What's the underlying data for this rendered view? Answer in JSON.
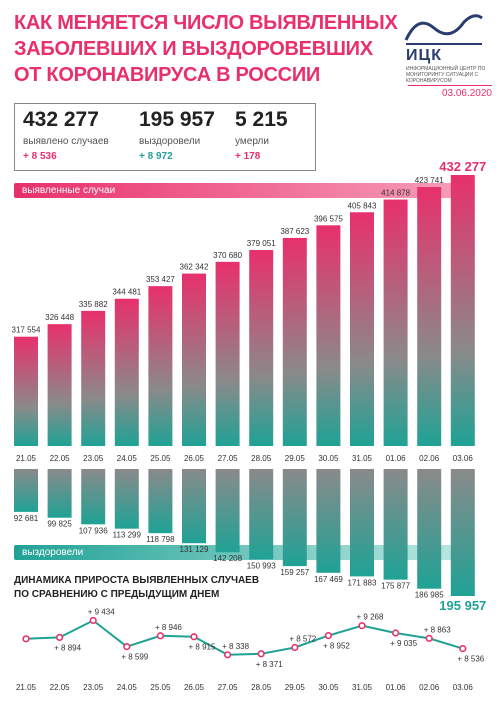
{
  "title_lines": [
    "КАК МЕНЯЕТСЯ ЧИСЛО ВЫЯВЛЕННЫХ",
    "ЗАБОЛЕВШИХ И ВЫЗДОРОВЕВШИХ",
    "ОТ КОРОНАВИРУСА В РОССИИ"
  ],
  "logo": {
    "name": "ИЦК",
    "subtitle": "ИНФОРМАЦИОННЫЙ ЦЕНТР ПО МОНИТОРИНГУ СИТУАЦИИ С КОРОНАВИРУСОМ"
  },
  "date": "03.06.2020",
  "stats": [
    {
      "value": "432 277",
      "label": "выявлено случаев",
      "delta": "+ 8 536",
      "color": "#e8306b"
    },
    {
      "value": "195 957",
      "label": "выздоровели",
      "delta": "+ 8 972",
      "color": "#1fa295"
    },
    {
      "value": "5 215",
      "label": "умерли",
      "delta": "+ 178",
      "color": "#e8306b"
    }
  ],
  "colors": {
    "cases": "#e8306b",
    "cases_dark": "#8a8a8a",
    "recovered": "#1fa295",
    "recovered_dark": "#8a8a8a",
    "line": "#1fa295",
    "marker": "#e8306b"
  },
  "chart_data": [
    {
      "type": "bar",
      "name": "выявленные случаи",
      "categories": [
        "21.05",
        "22.05",
        "23.05",
        "24.05",
        "25.05",
        "26.05",
        "27.05",
        "28.05",
        "29.05",
        "30.05",
        "31.05",
        "01.06",
        "02.06",
        "03.06"
      ],
      "values": [
        317554,
        326448,
        335882,
        344481,
        353427,
        362342,
        370680,
        379051,
        387623,
        396575,
        405843,
        414878,
        423741,
        432277
      ],
      "labels": [
        "317 554",
        "326 448",
        "335 882",
        "344 481",
        "353 427",
        "362 342",
        "370 680",
        "379 051",
        "387 623",
        "396 575",
        "405 843",
        "414 878",
        "423 741",
        "432 277"
      ]
    },
    {
      "type": "bar",
      "name": "выздоровели",
      "categories": [
        "21.05",
        "22.05",
        "23.05",
        "24.05",
        "25.05",
        "26.05",
        "27.05",
        "28.05",
        "29.05",
        "30.05",
        "31.05",
        "01.06",
        "02.06",
        "03.06"
      ],
      "values": [
        92681,
        99825,
        107936,
        113299,
        118798,
        131129,
        142208,
        150993,
        159257,
        167469,
        171883,
        175877,
        186985,
        195957
      ],
      "labels": [
        "92 681",
        "99 825",
        "107 936",
        "113 299",
        "118 798",
        "131 129",
        "142 208",
        "150 993",
        "159 257",
        "167 469",
        "171 883",
        "175 877",
        "186 985",
        "195 957"
      ]
    },
    {
      "type": "line",
      "title_lines": [
        "ДИНАМИКА ПРИРОСТА ВЫЯВЛЕННЫХ СЛУЧАЕВ",
        "ПО СРАВНЕНИЮ С ПРЕДЫДУЩИМ ДНЕМ"
      ],
      "categories": [
        "21.05",
        "22.05",
        "23.05",
        "24.05",
        "25.05",
        "26.05",
        "27.05",
        "28.05",
        "29.05",
        "30.05",
        "31.05",
        "01.06",
        "02.06",
        "03.06"
      ],
      "values": [
        8849,
        8894,
        9434,
        8599,
        8946,
        8915,
        8338,
        8371,
        8572,
        8952,
        9268,
        9035,
        8863,
        8536
      ],
      "labels": [
        "",
        "+ 8 894",
        "+ 9 434",
        "+ 8 599",
        "+ 8 946",
        "+ 8 915",
        "+ 8 338",
        "+ 8 371",
        "+ 8 572",
        "+ 8 952",
        "+ 9 268",
        "+ 9 035",
        "+ 8 863",
        "+ 8 536"
      ]
    }
  ]
}
